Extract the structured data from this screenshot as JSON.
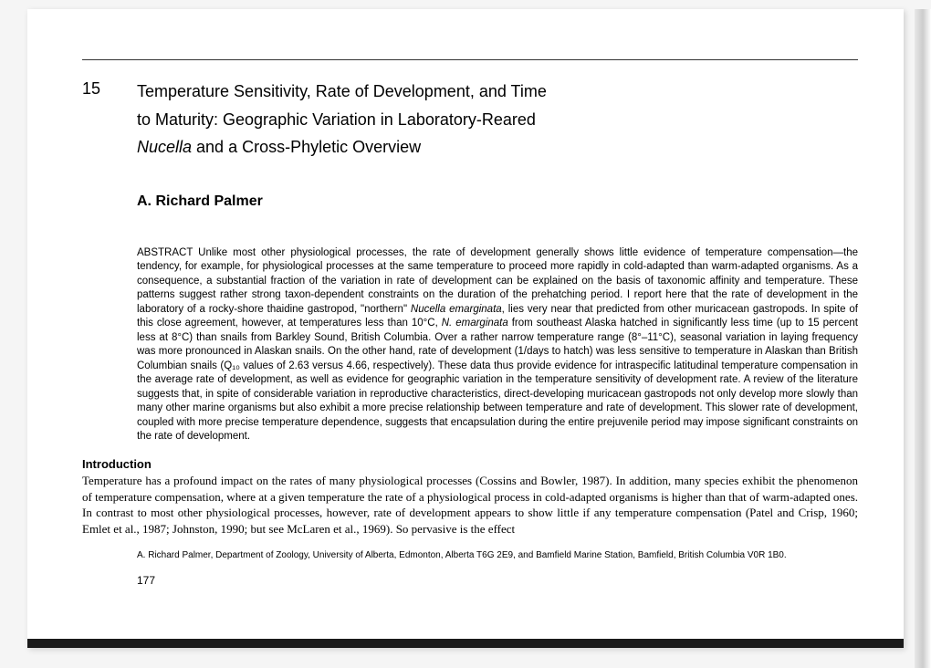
{
  "chapter_number": "15",
  "title_line1": "Temperature Sensitivity, Rate of Development, and Time",
  "title_line2": "to Maturity: Geographic Variation in Laboratory-Reared",
  "title_italic": "Nucella",
  "title_line3_rest": " and a Cross-Phyletic Overview",
  "author": "A. Richard Palmer",
  "abstract_label": "ABSTRACT",
  "abstract_text_1": " Unlike most other physiological processes, the rate of development generally shows little evidence of temperature compensation—the tendency, for example, for physiological processes at the same temperature to proceed more rapidly in cold-adapted than warm-adapted organisms. As a consequence, a substantial fraction of the variation in rate of development can be explained on the basis of taxonomic affinity and temperature. These patterns suggest rather strong taxon-dependent constraints on the duration of the prehatching period. I report here that the rate of development in the laboratory of a rocky-shore thaidine gastropod, \"northern\" ",
  "abstract_italic_1": "Nucella emarginata",
  "abstract_text_2": ", lies very near that predicted from other muricacean gastropods. In spite of this close agreement, however, at temperatures less than 10°C, ",
  "abstract_italic_2": "N. emarginata",
  "abstract_text_3": " from southeast Alaska hatched in significantly less time (up to 15 percent less at 8°C) than snails from Barkley Sound, British Columbia. Over a rather narrow temperature range (8°–11°C), seasonal variation in laying frequency was more pronounced in Alaskan snails. On the other hand, rate of development (1/days to hatch) was less sensitive to temperature in Alaskan than British Columbian snails (Q₁₀ values of 2.63 versus 4.66, respectively). These data thus provide evidence for intraspecific latitudinal temperature compensation in the average rate of development, as well as evidence for geographic variation in the temperature sensitivity of development rate. A review of the literature suggests that, in spite of considerable variation in reproductive characteristics, direct-developing muricacean gastropods not only develop more slowly than many other marine organisms but also exhibit a more precise relationship between temperature and rate of development. This slower rate of development, coupled with more precise temperature dependence, suggests that encapsulation during the entire prejuvenile period may impose significant constraints on the rate of development.",
  "intro_heading": "Introduction",
  "intro_text": "Temperature has a profound impact on the rates of many physiological processes (Cossins and Bowler, 1987). In addition, many species exhibit the phenomenon of temperature compensation, where at a given temperature the rate of a physiological process in cold-adapted organisms is higher than that of warm-adapted ones. In contrast to most other physiological processes, however, rate of development appears to show little if any temperature compensation (Patel and Crisp, 1960; Emlet et al., 1987; Johnston, 1990; but see McLaren et al., 1969). So pervasive is the effect",
  "footnote": "A. Richard Palmer, Department of Zoology, University of Alberta, Edmonton, Alberta T6G 2E9, and Bamfield Marine Station, Bamfield, British Columbia V0R 1B0.",
  "page_number": "177"
}
